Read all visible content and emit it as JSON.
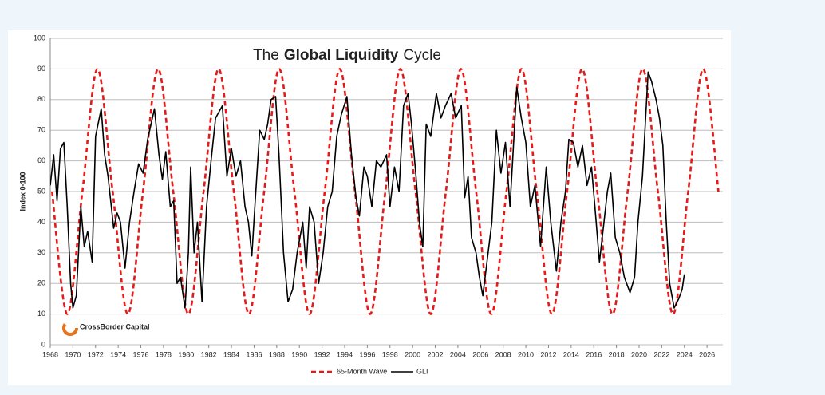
{
  "chart_data": {
    "type": "line",
    "title": {
      "prefix": "The",
      "bold": "Global Liquidity",
      "suffix": "Cycle"
    },
    "y_label": "Index 0-100",
    "logo_text": "CrossBorder Capital",
    "xlim": [
      1968,
      2027.4
    ],
    "ylim": [
      0,
      100
    ],
    "xticks": [
      1968,
      1970,
      1972,
      1974,
      1976,
      1978,
      1980,
      1982,
      1984,
      1986,
      1988,
      1990,
      1992,
      1994,
      1996,
      1998,
      2000,
      2002,
      2004,
      2006,
      2008,
      2010,
      2012,
      2014,
      2016,
      2018,
      2020,
      2022,
      2024,
      2026
    ],
    "yticks": [
      0,
      10,
      20,
      30,
      40,
      50,
      60,
      70,
      80,
      90,
      100
    ],
    "grid": true,
    "legend": "bottom",
    "series": [
      {
        "name": "65-Month Wave",
        "color": "#e31b1b",
        "dashed": true,
        "smooth": true,
        "x": [
          1968.16,
          1969.5,
          1970.84,
          1972.17,
          1973.51,
          1974.85,
          1976.19,
          1977.52,
          1978.86,
          1980.2,
          1981.54,
          1982.87,
          1984.21,
          1985.55,
          1986.89,
          1988.22,
          1989.56,
          1990.9,
          1992.24,
          1993.57,
          1994.91,
          1996.25,
          1997.59,
          1998.92,
          2000.26,
          2001.6,
          2002.94,
          2004.27,
          2005.61,
          2006.95,
          2008.29,
          2009.62,
          2010.96,
          2012.3,
          2013.64,
          2014.97,
          2016.31,
          2017.65,
          2018.99,
          2020.32,
          2021.66,
          2023.0,
          2024.34,
          2025.67,
          2027.01
        ],
        "values": [
          50,
          10,
          50,
          90,
          50,
          10,
          50,
          90,
          50,
          10,
          50,
          90,
          50,
          10,
          50,
          90,
          50,
          10,
          50,
          90,
          50,
          10,
          50,
          90,
          50,
          10,
          50,
          90,
          50,
          10,
          50,
          90,
          50,
          10,
          50,
          90,
          50,
          10,
          50,
          90,
          50,
          10,
          50,
          90,
          50
        ]
      },
      {
        "name": "GLI",
        "color": "#000000",
        "dashed": false,
        "smooth": false,
        "x": [
          1968.0,
          1968.3,
          1968.6,
          1968.9,
          1969.2,
          1969.5,
          1969.8,
          1970.0,
          1970.3,
          1970.7,
          1971.0,
          1971.3,
          1971.7,
          1972.0,
          1972.5,
          1972.8,
          1973.1,
          1973.6,
          1973.9,
          1974.2,
          1974.6,
          1975.0,
          1975.4,
          1975.8,
          1976.2,
          1976.6,
          1977.2,
          1977.6,
          1977.9,
          1978.2,
          1978.6,
          1978.9,
          1979.2,
          1979.5,
          1979.9,
          1980.2,
          1980.4,
          1980.7,
          1981.0,
          1981.4,
          1981.8,
          1982.2,
          1982.6,
          1983.2,
          1983.6,
          1984.0,
          1984.4,
          1984.8,
          1985.2,
          1985.5,
          1985.8,
          1986.1,
          1986.5,
          1986.9,
          1987.2,
          1987.5,
          1987.9,
          1988.2,
          1988.6,
          1989.0,
          1989.4,
          1989.8,
          1990.3,
          1990.6,
          1990.9,
          1991.3,
          1991.7,
          1992.1,
          1992.5,
          1992.9,
          1993.3,
          1993.7,
          1994.2,
          1994.6,
          1995.0,
          1995.3,
          1995.7,
          1996.0,
          1996.4,
          1996.8,
          1997.2,
          1997.7,
          1998.0,
          1998.4,
          1998.8,
          1999.2,
          1999.6,
          1999.9,
          2000.3,
          2000.6,
          2000.9,
          2001.2,
          2001.6,
          2002.1,
          2002.5,
          2002.9,
          2003.4,
          2003.8,
          2004.3,
          2004.6,
          2004.9,
          2005.2,
          2005.6,
          2005.9,
          2006.2,
          2006.6,
          2007.0,
          2007.4,
          2007.8,
          2008.2,
          2008.6,
          2009.2,
          2009.6,
          2010.0,
          2010.4,
          2010.8,
          2011.3,
          2011.8,
          2012.2,
          2012.7,
          2013.1,
          2013.5,
          2013.8,
          2014.2,
          2014.6,
          2015.0,
          2015.4,
          2015.8,
          2016.1,
          2016.5,
          2016.9,
          2017.2,
          2017.5,
          2017.9,
          2018.3,
          2018.7,
          2019.2,
          2019.6,
          2019.9,
          2020.3,
          2020.8,
          2021.1,
          2021.5,
          2021.8,
          2022.1,
          2022.4,
          2022.7,
          2023.1,
          2023.5,
          2023.8,
          2024.0
        ],
        "values": [
          52,
          62,
          47,
          64,
          66,
          45,
          20,
          12,
          16,
          45,
          32,
          37,
          27,
          68,
          77,
          62,
          55,
          38,
          43,
          40,
          25,
          40,
          50,
          59,
          56,
          67,
          77,
          62,
          54,
          63,
          45,
          47,
          20,
          22,
          12,
          30,
          58,
          30,
          40,
          14,
          45,
          60,
          74,
          78,
          55,
          64,
          55,
          60,
          45,
          40,
          29,
          47,
          70,
          67,
          72,
          80,
          81,
          62,
          30,
          14,
          18,
          30,
          40,
          25,
          45,
          40,
          20,
          30,
          45,
          50,
          68,
          75,
          81,
          62,
          48,
          42,
          58,
          55,
          45,
          60,
          58,
          62,
          45,
          58,
          50,
          78,
          82,
          72,
          55,
          40,
          32,
          72,
          68,
          82,
          74,
          78,
          82,
          74,
          78,
          48,
          55,
          35,
          30,
          22,
          16,
          28,
          40,
          70,
          56,
          66,
          45,
          84,
          74,
          66,
          45,
          52,
          32,
          58,
          40,
          24,
          40,
          50,
          67,
          66,
          58,
          65,
          52,
          58,
          45,
          27,
          40,
          50,
          56,
          35,
          30,
          22,
          17,
          22,
          40,
          55,
          89,
          86,
          80,
          74,
          65,
          40,
          20,
          12,
          15,
          18,
          23
        ]
      }
    ]
  }
}
